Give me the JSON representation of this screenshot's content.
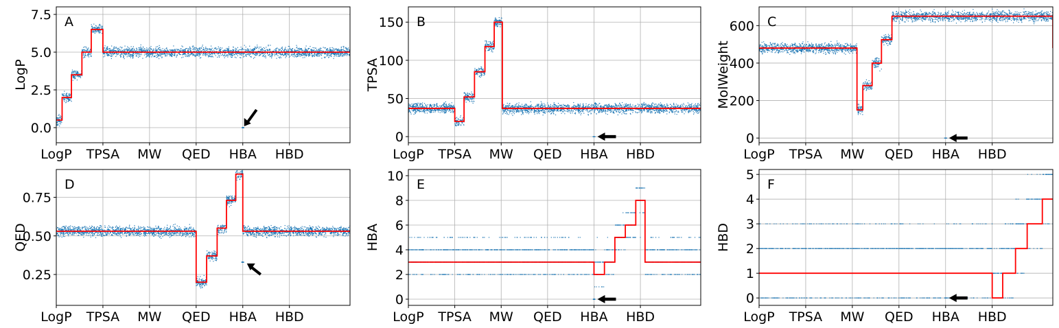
{
  "colors": {
    "scatter": "#1f77b4",
    "step_line": "#ff0000",
    "grid": "#b0b0b0",
    "arrow": "#000000"
  },
  "x_tick_labels": [
    "LogP",
    "TPSA",
    "MW",
    "QED",
    "HBA",
    "HBD"
  ],
  "chart_data": [
    {
      "panel": "A",
      "type": "scatter",
      "ylabel": "LogP",
      "ylim": [
        -1.0,
        8.0
      ],
      "yticks": [
        0.0,
        2.5,
        5.0,
        7.5
      ],
      "ytick_labels": [
        "0.0",
        "2.5",
        "5.0",
        "7.5"
      ],
      "xticks": [
        0,
        200,
        400,
        600,
        800,
        1000
      ],
      "xlim": [
        0,
        1260
      ],
      "grid": true,
      "step_line": {
        "breaks": [
          0,
          25,
          65,
          110,
          150,
          200,
          1260
        ],
        "levels": [
          0.5,
          2.0,
          3.5,
          5.0,
          6.5,
          5.0
        ]
      },
      "arrow_marker": {
        "x": 800,
        "y": 0.0
      }
    },
    {
      "panel": "B",
      "type": "scatter",
      "ylabel": "TPSA",
      "ylim": [
        -8,
        170
      ],
      "yticks": [
        0,
        50,
        100,
        150
      ],
      "ytick_labels": [
        "0",
        "50",
        "100",
        "150"
      ],
      "xticks": [
        0,
        200,
        400,
        600,
        800,
        1000
      ],
      "xlim": [
        0,
        1260
      ],
      "grid": true,
      "step_line": {
        "breaks": [
          0,
          200,
          240,
          285,
          330,
          370,
          405,
          1260
        ],
        "levels": [
          37,
          20,
          52,
          85,
          118,
          150,
          37
        ]
      },
      "arrow_marker": {
        "x": 800,
        "y": 0
      }
    },
    {
      "panel": "C",
      "type": "scatter",
      "ylabel": "MolWeight",
      "ylim": [
        -25,
        700
      ],
      "yticks": [
        0,
        200,
        400,
        600
      ],
      "ytick_labels": [
        "0",
        "200",
        "400",
        "600"
      ],
      "xticks": [
        0,
        200,
        400,
        600,
        800,
        1000
      ],
      "xlim": [
        0,
        1260
      ],
      "grid": true,
      "step_line": {
        "breaks": [
          0,
          420,
          445,
          485,
          525,
          570,
          1260
        ],
        "levels": [
          480,
          150,
          280,
          400,
          525,
          650,
          480
        ]
      },
      "arrow_marker": {
        "x": 800,
        "y": 0
      }
    },
    {
      "panel": "D",
      "type": "scatter",
      "ylabel": "QED",
      "ylim": [
        0.05,
        0.93
      ],
      "yticks": [
        0.25,
        0.5,
        0.75
      ],
      "ytick_labels": [
        "0.25",
        "0.50",
        "0.75"
      ],
      "xticks": [
        0,
        200,
        400,
        600,
        800,
        1000
      ],
      "xlim": [
        0,
        1260
      ],
      "grid": true,
      "step_line": {
        "breaks": [
          0,
          600,
          645,
          690,
          730,
          770,
          800,
          1260
        ],
        "levels": [
          0.53,
          0.2,
          0.37,
          0.55,
          0.73,
          0.9,
          0.53
        ]
      },
      "arrow_marker": {
        "x": 800,
        "y": 0.33
      }
    },
    {
      "panel": "E",
      "type": "scatter",
      "ylabel": "HBA",
      "ylim": [
        -0.5,
        10.5
      ],
      "yticks": [
        0,
        2,
        4,
        6,
        8,
        10
      ],
      "ytick_labels": [
        "0",
        "2",
        "4",
        "6",
        "8",
        "10"
      ],
      "xticks": [
        0,
        200,
        400,
        600,
        800,
        1000
      ],
      "xlim": [
        0,
        1260
      ],
      "grid": true,
      "step_line": {
        "breaks": [
          0,
          800,
          845,
          890,
          935,
          980,
          1020,
          1260
        ],
        "levels": [
          3,
          2,
          3,
          5,
          6,
          8,
          3
        ]
      },
      "arrow_marker": {
        "x": 800,
        "y": 0
      }
    },
    {
      "panel": "F",
      "type": "scatter",
      "ylabel": "HBD",
      "ylim": [
        -0.3,
        5.2
      ],
      "yticks": [
        0,
        1,
        2,
        3,
        4,
        5
      ],
      "ytick_labels": [
        "0",
        "1",
        "2",
        "3",
        "4",
        "5"
      ],
      "xticks": [
        0,
        200,
        400,
        600,
        800,
        1000
      ],
      "xlim": [
        0,
        1260
      ],
      "grid": true,
      "step_line": {
        "breaks": [
          0,
          1000,
          1045,
          1100,
          1150,
          1215,
          1260
        ],
        "levels": [
          1,
          0,
          1,
          2,
          3,
          4
        ]
      },
      "arrow_marker": {
        "x": 800,
        "y": 0
      }
    }
  ]
}
